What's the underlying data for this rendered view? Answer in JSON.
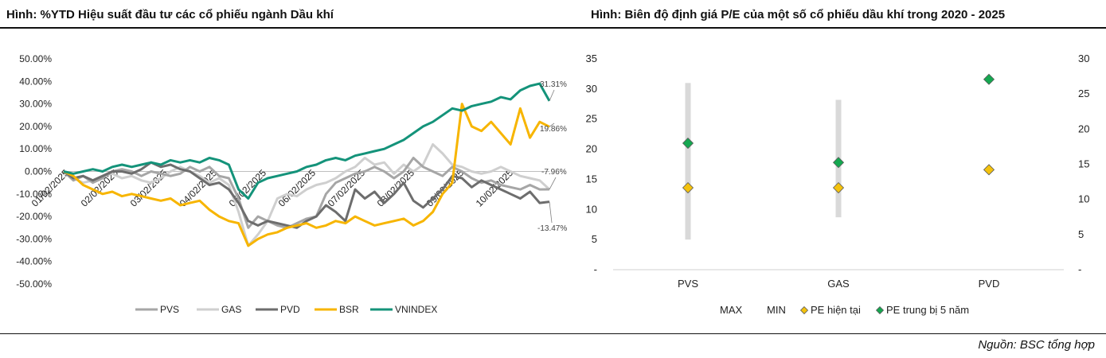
{
  "titles": {
    "left": "Hình: %YTD Hiệu suất đầu tư các cổ phiếu ngành Dầu khí",
    "right": "Hình: Biên độ định giá P/E của một số cổ phiếu dầu khí trong 2020 - 2025"
  },
  "source": "Nguồn: BSC tổng hợp",
  "chart_data": [
    {
      "type": "line",
      "title": "%YTD Hiệu suất đầu tư các cổ phiếu ngành Dầu khí",
      "ylim": [
        -50,
        50
      ],
      "y_ticks": [
        "50.00%",
        "40.00%",
        "30.00%",
        "20.00%",
        "10.00%",
        "0.00%",
        "-10.00%",
        "-20.00%",
        "-30.00%",
        "-40.00%",
        "-50.00%"
      ],
      "x_ticks": [
        "01/02/2025",
        "02/02/2025",
        "03/02/2025",
        "04/02/2025",
        "05/02/2025",
        "06/02/2025",
        "07/02/2025",
        "08/02/2025",
        "09/02/2025",
        "10/02/2025"
      ],
      "series": [
        {
          "name": "PVS",
          "color": "#a6a6a6",
          "values": [
            0,
            -4,
            -2,
            -5,
            -3,
            0,
            1,
            0,
            -2,
            0,
            -1,
            -2,
            -1,
            2,
            0,
            2,
            -2,
            -3,
            -12,
            -25,
            -20,
            -22,
            -24,
            -25,
            -23,
            -21,
            -20,
            -10,
            -5,
            -3,
            -1,
            0,
            2,
            0,
            -3,
            0,
            6,
            2,
            0,
            -2,
            2,
            0,
            -3,
            -5,
            -4,
            -6,
            -7,
            -8,
            -6,
            -8,
            -7.96
          ]
        },
        {
          "name": "GAS",
          "color": "#cfcfcf",
          "values": [
            0,
            -3,
            -5,
            -4,
            -2,
            -1,
            -3,
            -2,
            -4,
            -5,
            -3,
            0,
            2,
            0,
            -2,
            -5,
            -3,
            -6,
            -18,
            -33,
            -28,
            -22,
            -12,
            -10,
            -11,
            -8,
            -6,
            -5,
            -3,
            0,
            2,
            6,
            3,
            4,
            -1,
            3,
            0,
            3,
            12,
            8,
            3,
            2,
            0,
            -1,
            0,
            2,
            0,
            -2,
            -3,
            -4,
            -8
          ]
        },
        {
          "name": "PVD",
          "color": "#6d6d6d",
          "values": [
            0,
            -3,
            -2,
            -4,
            -2,
            0,
            0,
            -1,
            1,
            4,
            2,
            3,
            1,
            0,
            -3,
            -6,
            -5,
            -8,
            -14,
            -22,
            -24,
            -22,
            -23,
            -24,
            -25,
            -22,
            -20,
            -15,
            -18,
            -22,
            -8,
            -12,
            -9,
            -14,
            -10,
            -5,
            -13,
            -16,
            -12,
            -8,
            -2,
            -3,
            -7,
            -4,
            -6,
            -8,
            -10,
            -12,
            -9,
            -14,
            -13.47
          ]
        },
        {
          "name": "BSR",
          "color": "#f7b500",
          "values": [
            0,
            -2,
            -6,
            -8,
            -10,
            -9,
            -11,
            -10,
            -11,
            -12,
            -13,
            -12,
            -15,
            -14,
            -13,
            -17,
            -20,
            -22,
            -23,
            -33,
            -30,
            -28,
            -27,
            -25,
            -24,
            -23,
            -25,
            -24,
            -22,
            -23,
            -20,
            -22,
            -24,
            -23,
            -22,
            -21,
            -24,
            -22,
            -18,
            -10,
            -5,
            30,
            20,
            18,
            22,
            17,
            12,
            28,
            15,
            22,
            19.86
          ]
        },
        {
          "name": "VNINDEX",
          "color": "#14937a",
          "values": [
            0,
            -1,
            0,
            1,
            0,
            2,
            3,
            2,
            3,
            4,
            3,
            5,
            4,
            5,
            4,
            6,
            5,
            3,
            -8,
            -12,
            -5,
            -3,
            -2,
            -1,
            0,
            2,
            3,
            5,
            6,
            5,
            7,
            8,
            9,
            10,
            12,
            14,
            17,
            20,
            22,
            25,
            28,
            27,
            29,
            30,
            31,
            33,
            32,
            36,
            38,
            39,
            31.31
          ]
        }
      ],
      "end_labels": [
        "31.31%",
        "19.86%",
        "-7.96%",
        "-13.47%"
      ]
    },
    {
      "type": "range",
      "title": "Biên độ định giá P/E của một số cổ phiếu dầu khí trong 2020 - 2025",
      "categories": [
        "PVS",
        "GAS",
        "PVD"
      ],
      "ylim": [
        0,
        35
      ],
      "y_ticks_left": [
        "35",
        "30",
        "25",
        "20",
        "15",
        "10",
        "5",
        "-"
      ],
      "y_ticks_right": [
        "30",
        "25",
        "20",
        "15",
        "10",
        "5",
        "-"
      ],
      "series": [
        {
          "name": "MAX",
          "values": [
            31,
            28.2,
            null
          ]
        },
        {
          "name": "MIN",
          "values": [
            5,
            8.7,
            null
          ]
        },
        {
          "name": "PE hiện tại",
          "color": "#f4c20d",
          "values": [
            13.6,
            13.6,
            16.6
          ]
        },
        {
          "name": "PE trung bị 5 năm",
          "color": "#15a750",
          "values": [
            21,
            17.8,
            31.6
          ]
        }
      ]
    }
  ]
}
